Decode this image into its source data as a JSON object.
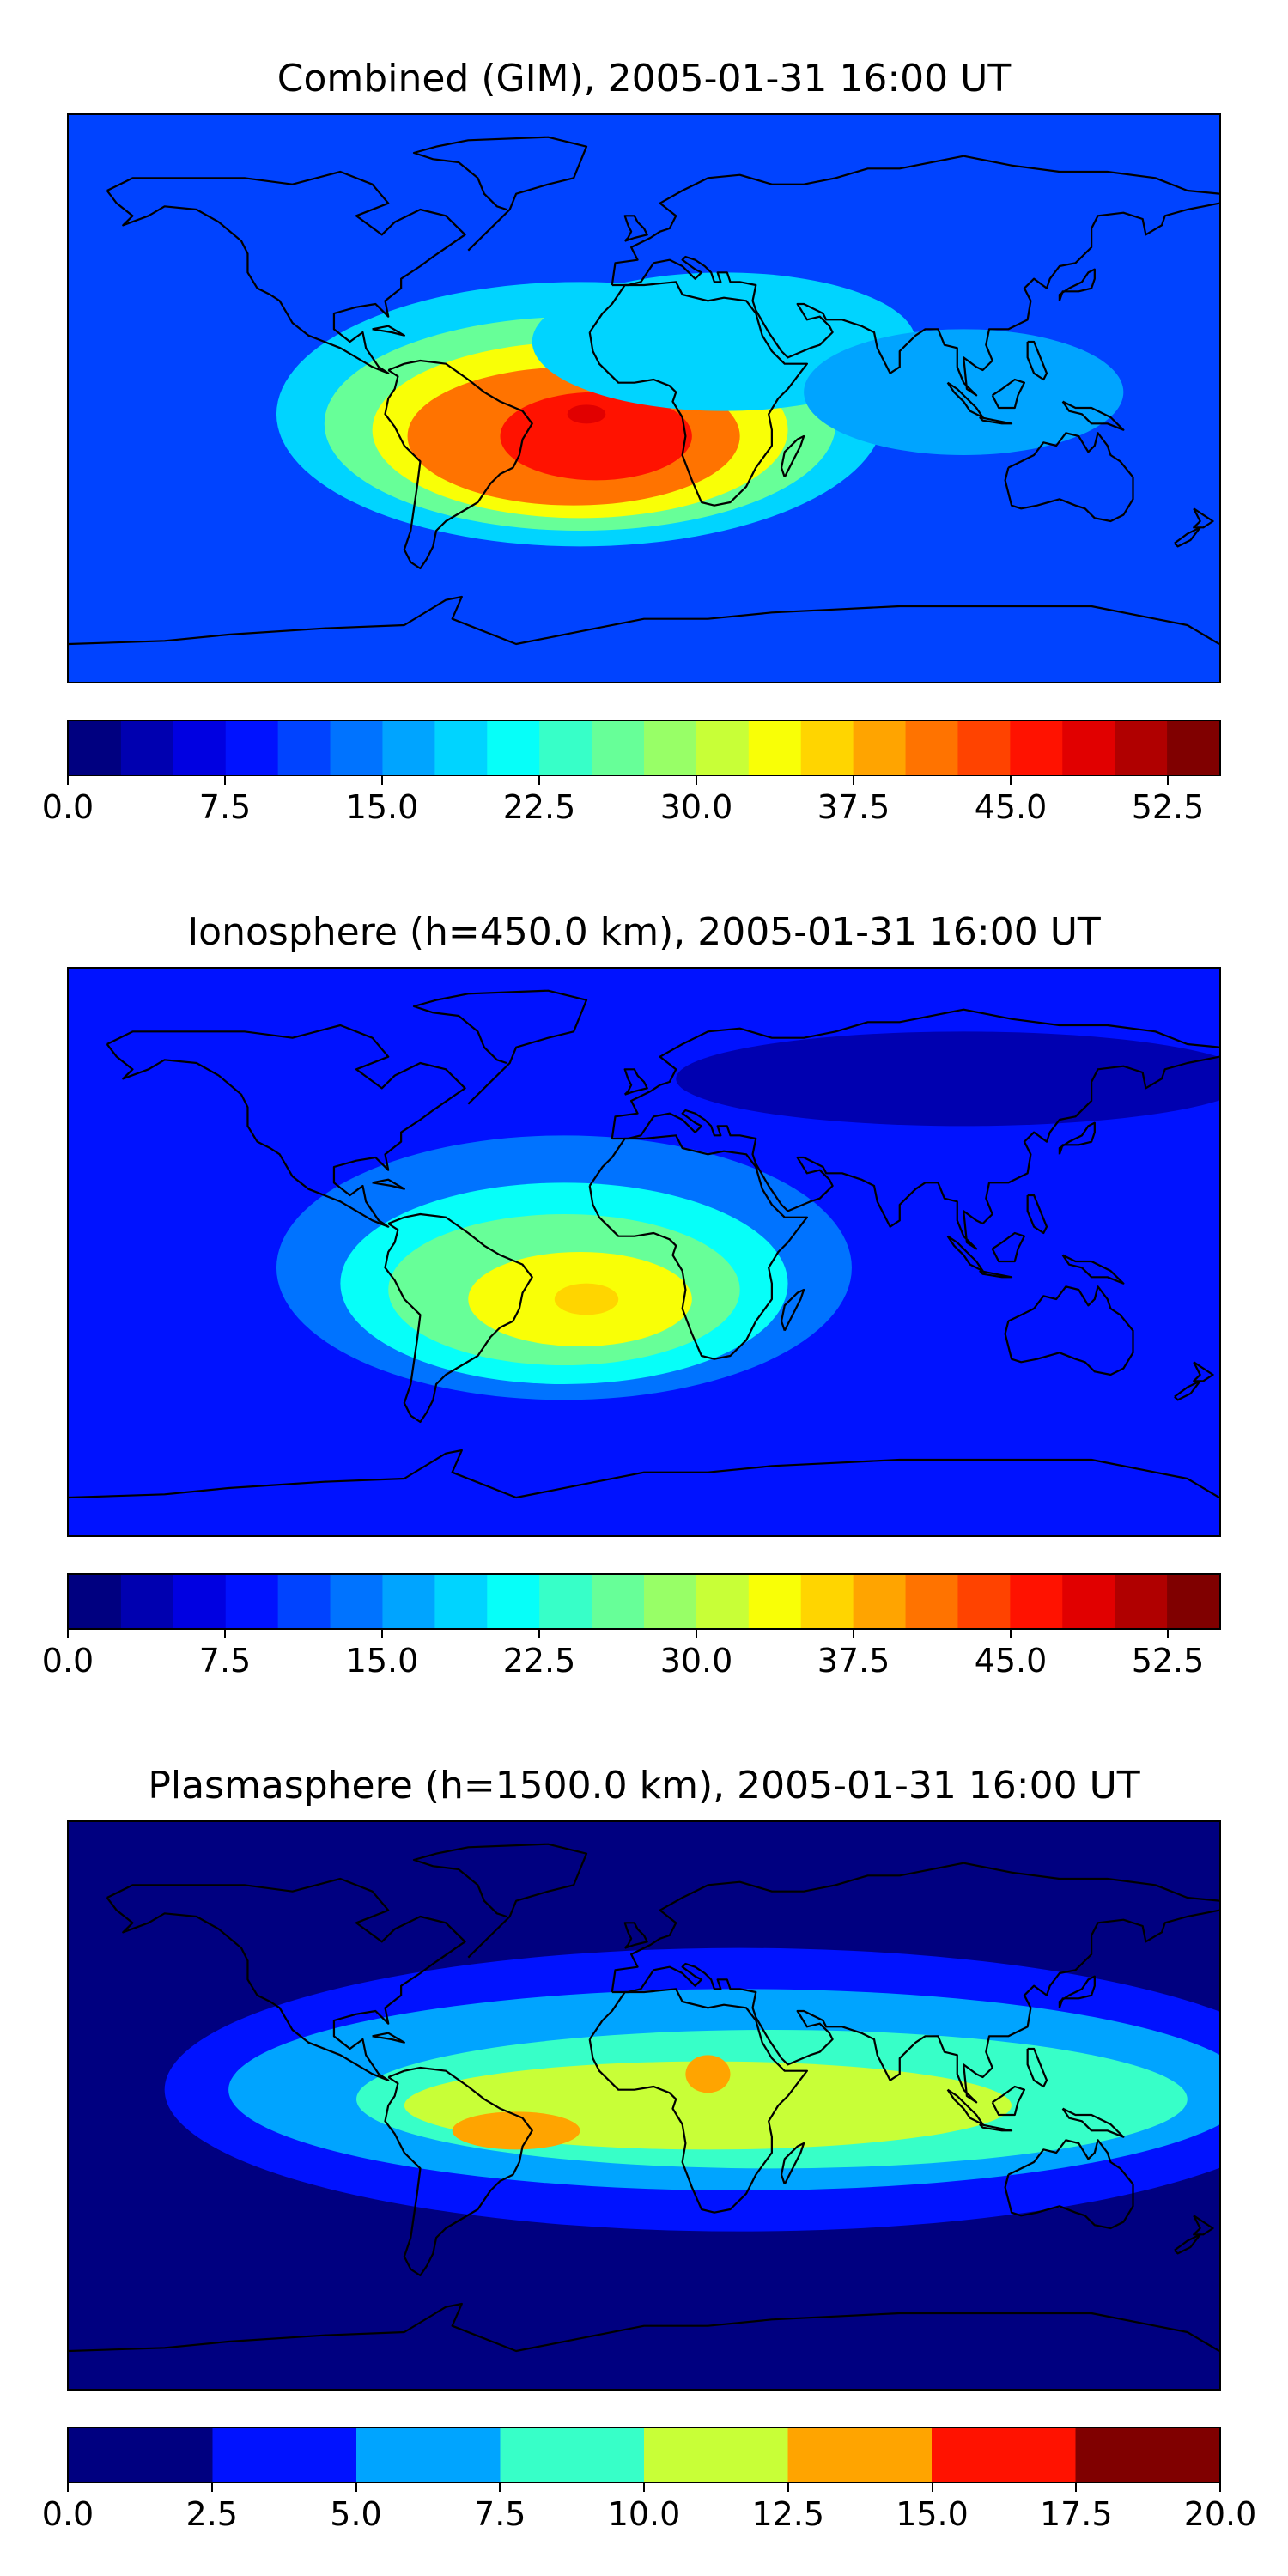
{
  "chart_data": [
    {
      "type": "heatmap",
      "title": "Combined (GIM), 2005-01-31 16:00 UT",
      "colorbar": {
        "min": 0.0,
        "max": 55.0,
        "step": 2.5,
        "tick_values": [
          0.0,
          7.5,
          15.0,
          22.5,
          30.0,
          37.5,
          45.0,
          52.5
        ],
        "tick_labels": [
          "0.0",
          "7.5",
          "15.0",
          "22.5",
          "30.0",
          "37.5",
          "45.0",
          "52.5"
        ]
      },
      "background_level": 10.0,
      "regions": [
        {
          "lon": -20,
          "lat": -5,
          "rx": 95,
          "ry": 42,
          "value": 17.5
        },
        {
          "lon": -20,
          "lat": -8,
          "rx": 80,
          "ry": 34,
          "value": 25.0
        },
        {
          "lon": -20,
          "lat": -10,
          "rx": 65,
          "ry": 28,
          "value": 32.5
        },
        {
          "lon": -22,
          "lat": -12,
          "rx": 52,
          "ry": 22,
          "value": 40.0
        },
        {
          "lon": -15,
          "lat": -12,
          "rx": 30,
          "ry": 14,
          "value": 45.0
        },
        {
          "lon": -18,
          "lat": -5,
          "rx": 6,
          "ry": 3,
          "value": 47.5
        },
        {
          "lon": 25,
          "lat": 18,
          "rx": 60,
          "ry": 22,
          "value": 17.5
        },
        {
          "lon": 100,
          "lat": 2,
          "rx": 50,
          "ry": 20,
          "value": 15.0
        }
      ]
    },
    {
      "type": "heatmap",
      "title": "Ionosphere  (h=450.0 km), 2005-01-31 16:00 UT",
      "colorbar": {
        "min": 0.0,
        "max": 55.0,
        "step": 2.5,
        "tick_values": [
          0.0,
          7.5,
          15.0,
          22.5,
          30.0,
          37.5,
          45.0,
          52.5
        ],
        "tick_labels": [
          "0.0",
          "7.5",
          "15.0",
          "22.5",
          "30.0",
          "37.5",
          "45.0",
          "52.5"
        ]
      },
      "background_level": 7.5,
      "regions": [
        {
          "lon": -25,
          "lat": -5,
          "rx": 90,
          "ry": 42,
          "value": 12.5
        },
        {
          "lon": -25,
          "lat": -10,
          "rx": 70,
          "ry": 32,
          "value": 20.0
        },
        {
          "lon": -25,
          "lat": -12,
          "rx": 55,
          "ry": 24,
          "value": 25.0
        },
        {
          "lon": -20,
          "lat": -15,
          "rx": 35,
          "ry": 15,
          "value": 32.5
        },
        {
          "lon": -18,
          "lat": -15,
          "rx": 10,
          "ry": 5,
          "value": 35.0
        },
        {
          "lon": 100,
          "lat": 55,
          "rx": 90,
          "ry": 15,
          "value": 2.5
        }
      ]
    },
    {
      "type": "heatmap",
      "title": "Plasmasphere (h=1500.0 km), 2005-01-31 16:00 UT",
      "colorbar": {
        "min": 0.0,
        "max": 20.0,
        "step": 2.5,
        "tick_values": [
          0.0,
          2.5,
          5.0,
          7.5,
          10.0,
          12.5,
          15.0,
          17.5,
          20.0
        ],
        "tick_labels": [
          "0.0",
          "2.5",
          "5.0",
          "7.5",
          "10.0",
          "12.5",
          "15.0",
          "17.5",
          "20.0"
        ]
      },
      "background_level": 0.0,
      "regions": [
        {
          "lon": 30,
          "lat": 5,
          "rx": 180,
          "ry": 45,
          "value": 2.5
        },
        {
          "lon": 30,
          "lat": 5,
          "rx": 160,
          "ry": 32,
          "value": 5.0
        },
        {
          "lon": 40,
          "lat": 2,
          "rx": 130,
          "ry": 22,
          "value": 7.5
        },
        {
          "lon": 20,
          "lat": 0,
          "rx": 95,
          "ry": 14,
          "value": 10.0
        },
        {
          "lon": -40,
          "lat": -8,
          "rx": 20,
          "ry": 6,
          "value": 12.5
        },
        {
          "lon": 20,
          "lat": 10,
          "rx": 7,
          "ry": 6,
          "value": 12.5
        }
      ]
    }
  ]
}
